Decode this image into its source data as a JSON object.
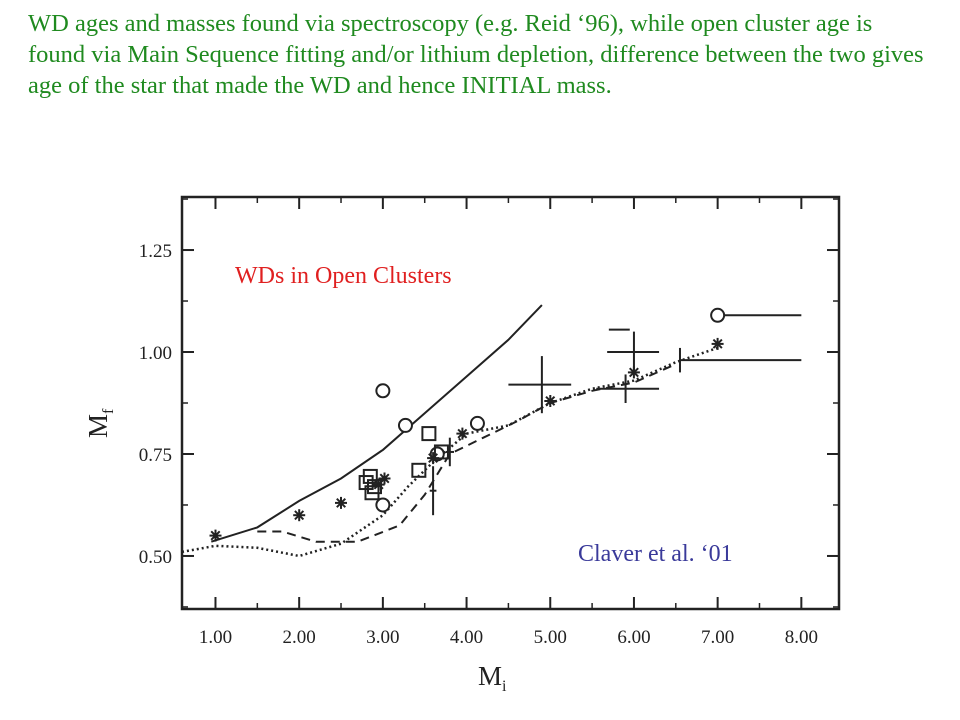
{
  "slide": {
    "text": "WD ages and masses found via spectroscopy (e.g. Reid ‘96), while open cluster age is found via Main Sequence fitting and/or lithium depletion, difference between the two gives age of the star that made the WD and hence INITIAL mass."
  },
  "colors": {
    "slide_text": "#1f8a1f",
    "annotation_title": "#e02020",
    "annotation_credit": "#3a3a9a",
    "ink": "#222222"
  },
  "chart_data": {
    "type": "scatter",
    "xlabel_main": "M",
    "xlabel_sub": "i",
    "ylabel_main": "M",
    "ylabel_sub": "f",
    "xlim": [
      0.6,
      8.45
    ],
    "ylim": [
      0.37,
      1.38
    ],
    "x_ticks": [
      1,
      2,
      3,
      4,
      5,
      6,
      7,
      8
    ],
    "x_tick_labels": [
      "1.00",
      "2.00",
      "3.00",
      "4.00",
      "5.00",
      "6.00",
      "7.00",
      "8.00"
    ],
    "y_ticks": [
      0.5,
      0.75,
      1.0,
      1.25
    ],
    "y_tick_labels": [
      "0.50",
      "0.75",
      "1.00",
      "1.25"
    ],
    "annotations": {
      "title": "WDs in Open Clusters",
      "credit": "Claver et al. ‘01"
    },
    "series": [
      {
        "marker": "circle",
        "points": [
          [
            3.0,
            0.905
          ],
          [
            3.27,
            0.82
          ],
          [
            3.0,
            0.625
          ],
          [
            3.65,
            0.75
          ],
          [
            4.13,
            0.825
          ],
          [
            7.0,
            1.09
          ]
        ]
      },
      {
        "marker": "square",
        "points": [
          [
            2.8,
            0.68
          ],
          [
            2.85,
            0.695
          ],
          [
            2.9,
            0.67
          ],
          [
            2.87,
            0.655
          ],
          [
            3.55,
            0.8
          ],
          [
            3.43,
            0.71
          ],
          [
            3.7,
            0.755
          ]
        ]
      },
      {
        "marker": "asterisk",
        "points": [
          [
            1.0,
            0.55
          ],
          [
            2.0,
            0.6
          ],
          [
            2.5,
            0.63
          ],
          [
            2.95,
            0.675
          ],
          [
            3.02,
            0.69
          ],
          [
            3.6,
            0.74
          ],
          [
            3.95,
            0.8
          ],
          [
            5.0,
            0.88
          ],
          [
            6.0,
            0.95
          ],
          [
            7.0,
            1.02
          ]
        ]
      },
      {
        "marker": "errorbar",
        "points": [
          {
            "x": 3.6,
            "y": 0.66,
            "xerr": [
              0.04,
              0.04
            ],
            "yerr": [
              0.06,
              0.06
            ]
          },
          {
            "x": 3.8,
            "y": 0.755,
            "xerr": [
              0.05,
              0.05
            ],
            "yerr": [
              0.035,
              0.035
            ]
          },
          {
            "x": 4.9,
            "y": 0.92,
            "xerr": [
              0.4,
              0.35
            ],
            "yerr": [
              0.07,
              0.07
            ]
          },
          {
            "x": 5.85,
            "y": 1.055,
            "xerr": [
              0.15,
              0.1
            ],
            "yerr": [
              0.0,
              0.0
            ]
          },
          {
            "x": 6.0,
            "y": 1.0,
            "xerr": [
              0.32,
              0.3
            ],
            "yerr": [
              0.05,
              0.05
            ]
          },
          {
            "x": 5.9,
            "y": 0.91,
            "xerr": [
              0.35,
              0.4
            ],
            "yerr": [
              0.035,
              0.035
            ]
          },
          {
            "x": 6.55,
            "y": 0.98,
            "xerr": [
              0.0,
              1.45
            ],
            "yerr": [
              0.03,
              0.03
            ]
          },
          {
            "x": 7.0,
            "y": 1.09,
            "xerr": [
              0.0,
              1.0
            ],
            "yerr": [
              0.0,
              0.0
            ]
          }
        ]
      },
      {
        "line": "solid",
        "points": [
          [
            0.95,
            0.535
          ],
          [
            1.5,
            0.57
          ],
          [
            2.0,
            0.635
          ],
          [
            2.5,
            0.69
          ],
          [
            3.0,
            0.76
          ],
          [
            3.5,
            0.85
          ],
          [
            4.0,
            0.94
          ],
          [
            4.5,
            1.03
          ],
          [
            4.9,
            1.115
          ]
        ]
      },
      {
        "line": "dashed",
        "points": [
          [
            1.5,
            0.56
          ],
          [
            1.8,
            0.56
          ],
          [
            2.2,
            0.535
          ],
          [
            2.7,
            0.535
          ],
          [
            3.2,
            0.575
          ],
          [
            3.5,
            0.65
          ],
          [
            3.8,
            0.75
          ],
          [
            4.2,
            0.79
          ],
          [
            4.6,
            0.83
          ],
          [
            5.0,
            0.875
          ],
          [
            5.5,
            0.905
          ],
          [
            6.0,
            0.925
          ],
          [
            6.5,
            0.97
          ]
        ]
      },
      {
        "line": "dotted",
        "points": [
          [
            0.6,
            0.51
          ],
          [
            1.0,
            0.525
          ],
          [
            1.5,
            0.52
          ],
          [
            2.0,
            0.5
          ],
          [
            2.5,
            0.53
          ],
          [
            3.0,
            0.6
          ],
          [
            3.3,
            0.67
          ],
          [
            3.6,
            0.73
          ],
          [
            4.0,
            0.8
          ],
          [
            4.5,
            0.82
          ],
          [
            5.0,
            0.875
          ],
          [
            5.5,
            0.91
          ],
          [
            6.0,
            0.93
          ],
          [
            6.5,
            0.975
          ],
          [
            7.0,
            1.01
          ]
        ]
      }
    ]
  }
}
